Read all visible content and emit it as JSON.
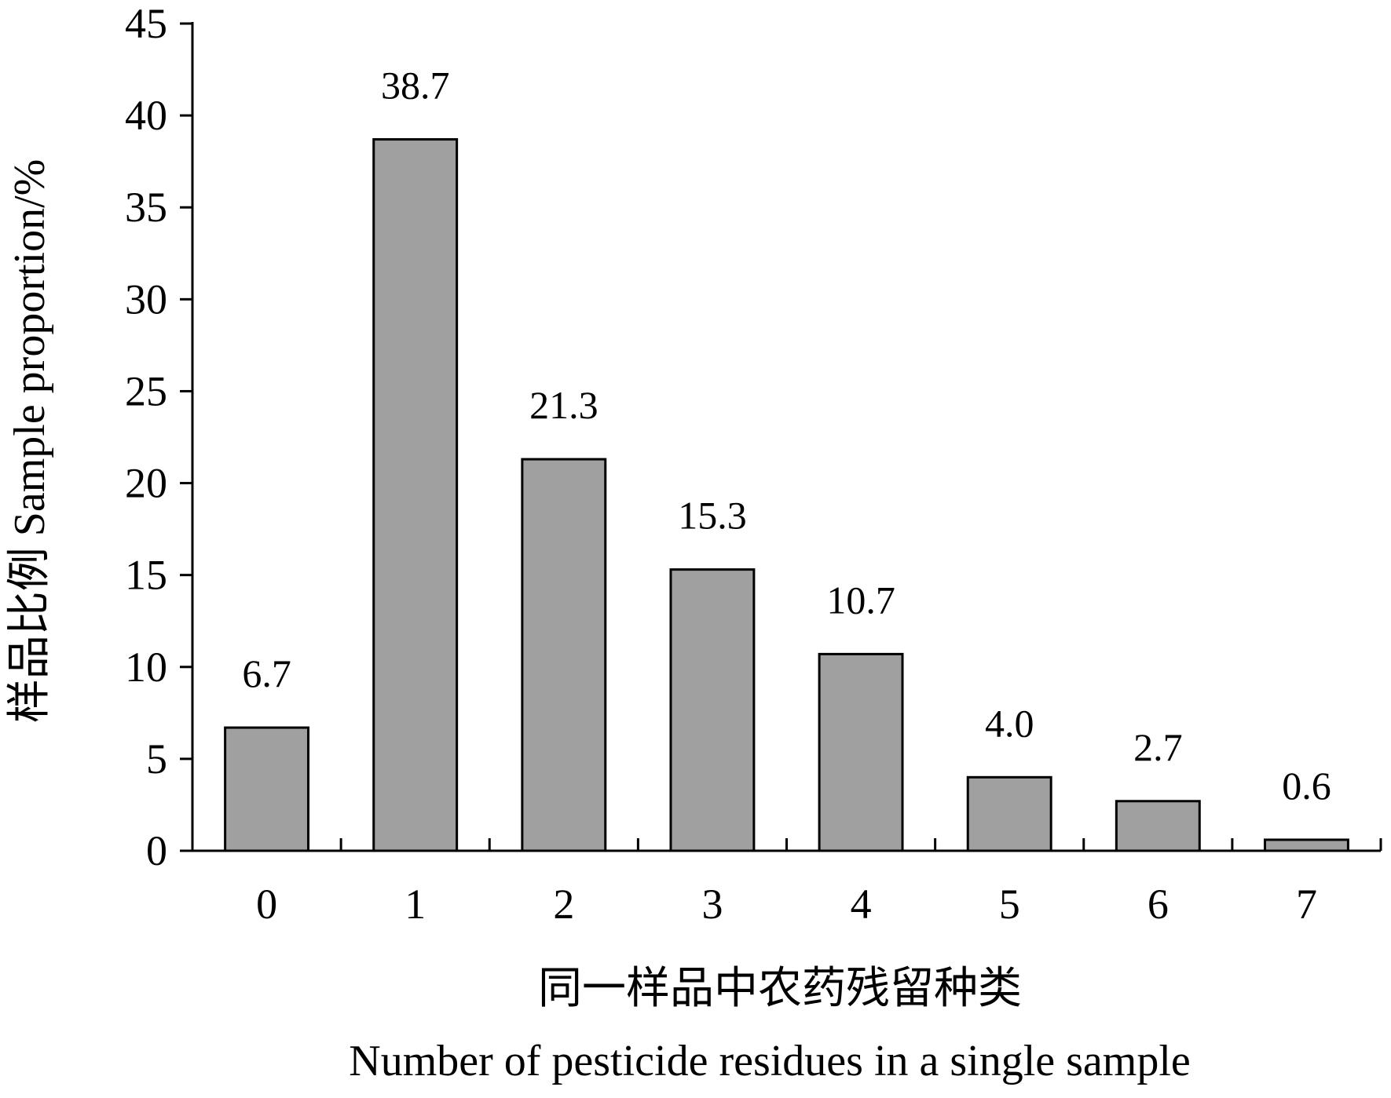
{
  "chart_data": {
    "type": "bar",
    "categories": [
      "0",
      "1",
      "2",
      "3",
      "4",
      "5",
      "6",
      "7"
    ],
    "values": [
      6.7,
      38.7,
      21.3,
      15.3,
      10.7,
      4.0,
      2.7,
      0.6
    ],
    "data_labels": [
      "6.7",
      "38.7",
      "21.3",
      "15.3",
      "10.7",
      "4.0",
      "2.7",
      "0.6"
    ],
    "ylim": [
      0,
      45
    ],
    "y_ticks": [
      0,
      5,
      10,
      15,
      20,
      25,
      30,
      35,
      40,
      45
    ],
    "xlabel_cn": "同一样品中农药残留种类",
    "xlabel_en": "Number of pesticide residues in a single sample",
    "ylabel": "样品比例 Sample proportion/%",
    "grid": false,
    "legend": "none",
    "bar_color": "#a0a0a0",
    "bar_stroke": "#000000"
  }
}
